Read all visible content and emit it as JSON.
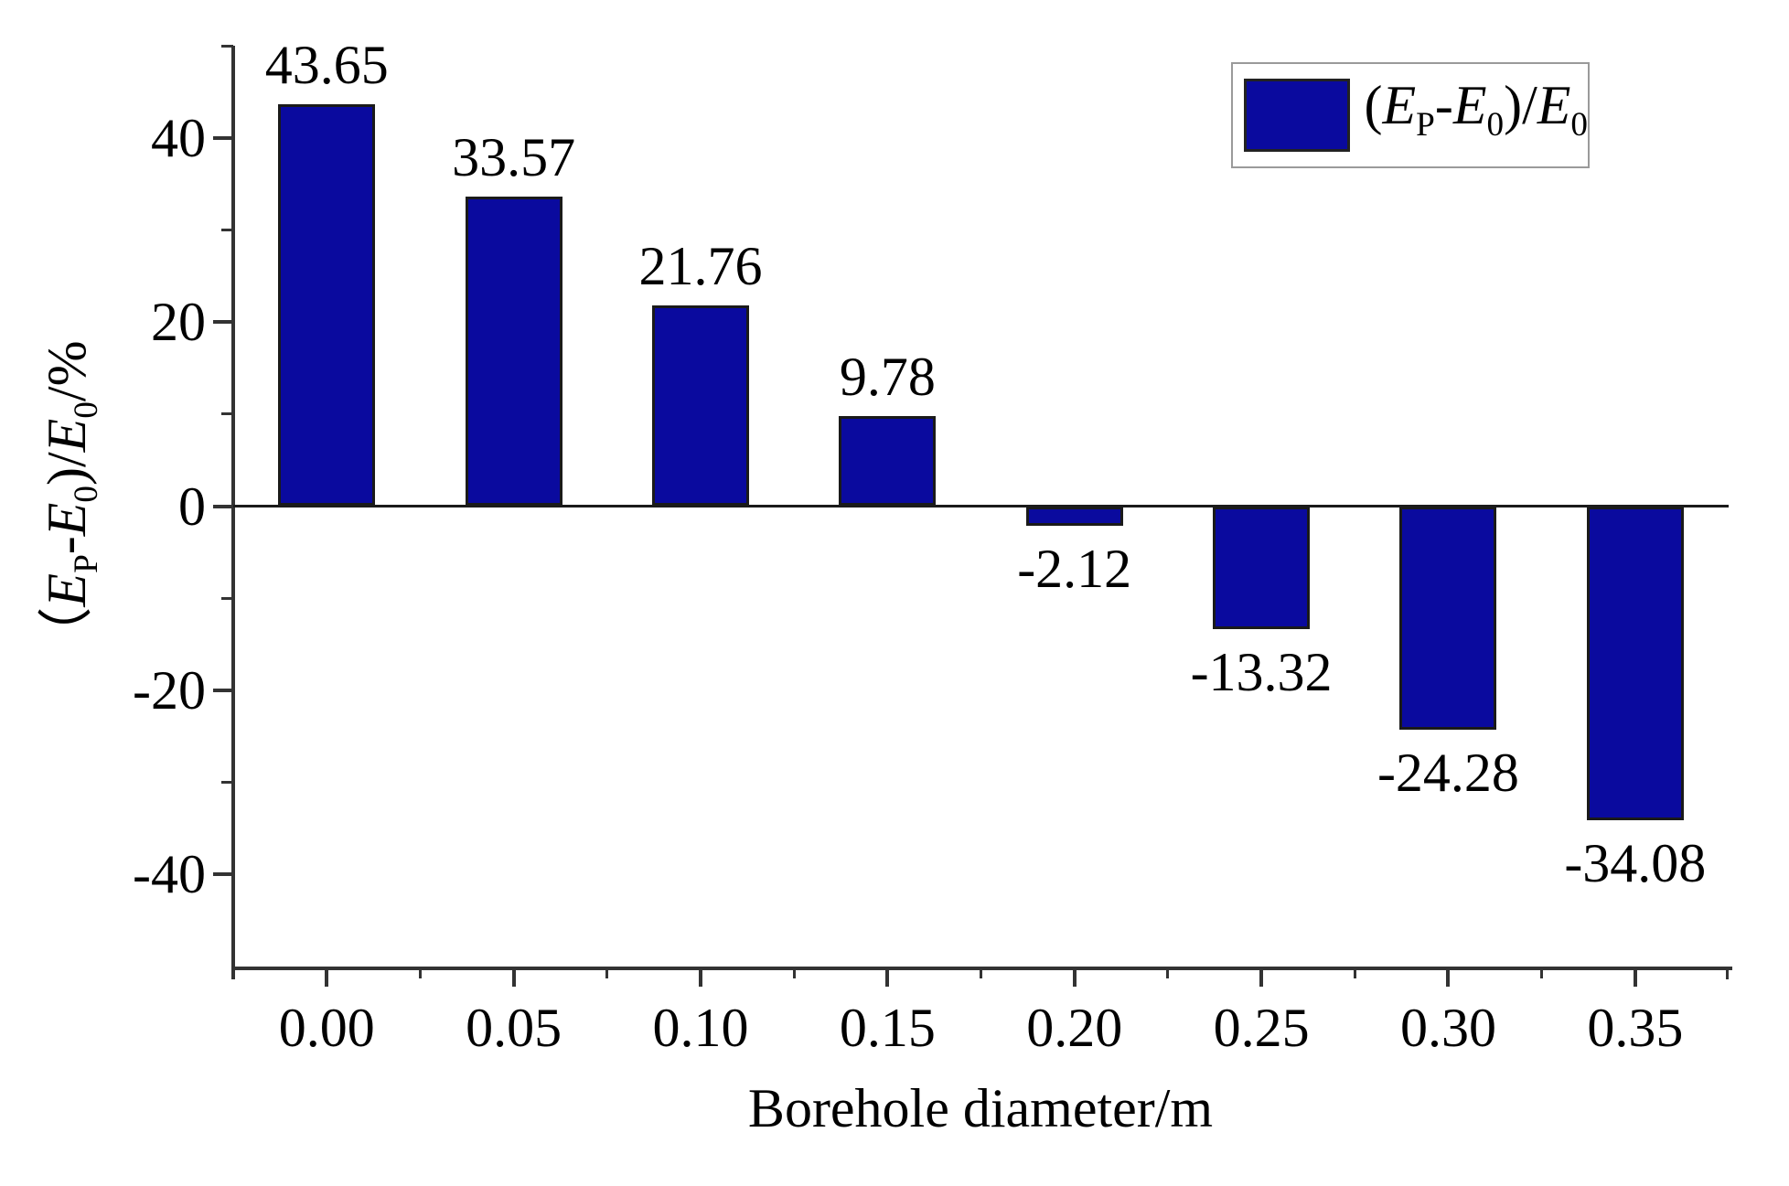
{
  "figure": {
    "y_axis_title": "（E_P-E_0)/E_0/%",
    "x_axis_title": "Borehole diameter/m",
    "legend_label": "(E_P-E_0)/E_0"
  },
  "chart_data": {
    "type": "bar",
    "title": "",
    "xlabel": "Borehole diameter/m",
    "ylabel": "（E_P-E_0)/E_0/%",
    "categories": [
      "0.00",
      "0.05",
      "0.10",
      "0.15",
      "0.20",
      "0.25",
      "0.30",
      "0.35"
    ],
    "values": [
      43.65,
      33.57,
      21.76,
      9.78,
      -2.12,
      -13.32,
      -24.28,
      -34.08
    ],
    "value_labels": [
      "43.65",
      "33.57",
      "21.76",
      "9.78",
      "-2.12",
      "-13.32",
      "-24.28",
      "-34.08"
    ],
    "series": [
      {
        "name": "(E_P-E_0)/E_0",
        "values": [
          43.65,
          33.57,
          21.76,
          9.78,
          -2.12,
          -13.32,
          -24.28,
          -34.08
        ]
      }
    ],
    "ylim": [
      -50,
      50
    ],
    "y_major_ticks": [
      40,
      20,
      0,
      -20,
      -40
    ],
    "y_tick_labels": [
      "40",
      "20",
      "0",
      "-20",
      "-40"
    ],
    "y_minor_ticks": [
      50,
      30,
      10,
      -10,
      -30
    ],
    "grid": false,
    "legend_position": "top-right",
    "legend_entries": [
      "(E_P-E_0)/E_0"
    ],
    "bar_color": "#0a0a9e",
    "bar_border_color": "#1a1a1a"
  }
}
